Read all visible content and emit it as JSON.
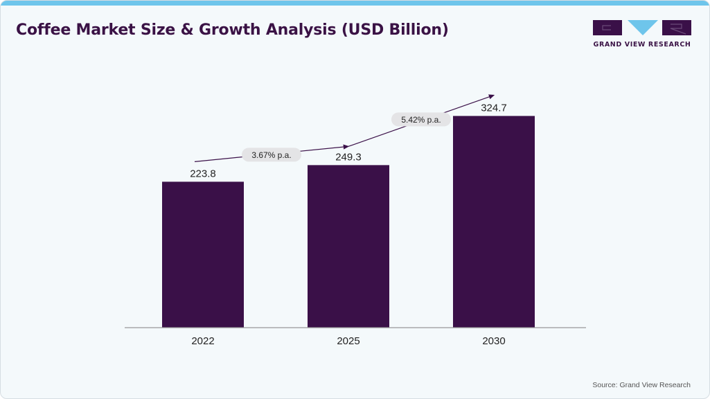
{
  "header": {
    "title": "Coffee Market Size & Growth Analysis (USD Billion)"
  },
  "logo": {
    "text": "GRAND VIEW RESEARCH",
    "icon": "gvr-logo-icon"
  },
  "colors": {
    "bar": "#3a1048",
    "accent": "#6ec5eb",
    "title": "#3a1245",
    "axis": "#999999"
  },
  "chart_data": {
    "type": "bar",
    "title": "Coffee Market Size & Growth Analysis (USD Billion)",
    "categories": [
      "2022",
      "2025",
      "2030"
    ],
    "values": [
      223.8,
      249.3,
      324.7
    ],
    "value_labels": [
      "223.8",
      "249.3",
      "324.7"
    ],
    "ylim": [
      0,
      340
    ],
    "grid": false,
    "growth_annotations": [
      {
        "from": "2022",
        "to": "2025",
        "label": "3.67% p.a."
      },
      {
        "from": "2025",
        "to": "2030",
        "label": "5.42% p.a."
      }
    ]
  },
  "footer": {
    "source": "Source: Grand View Research"
  }
}
